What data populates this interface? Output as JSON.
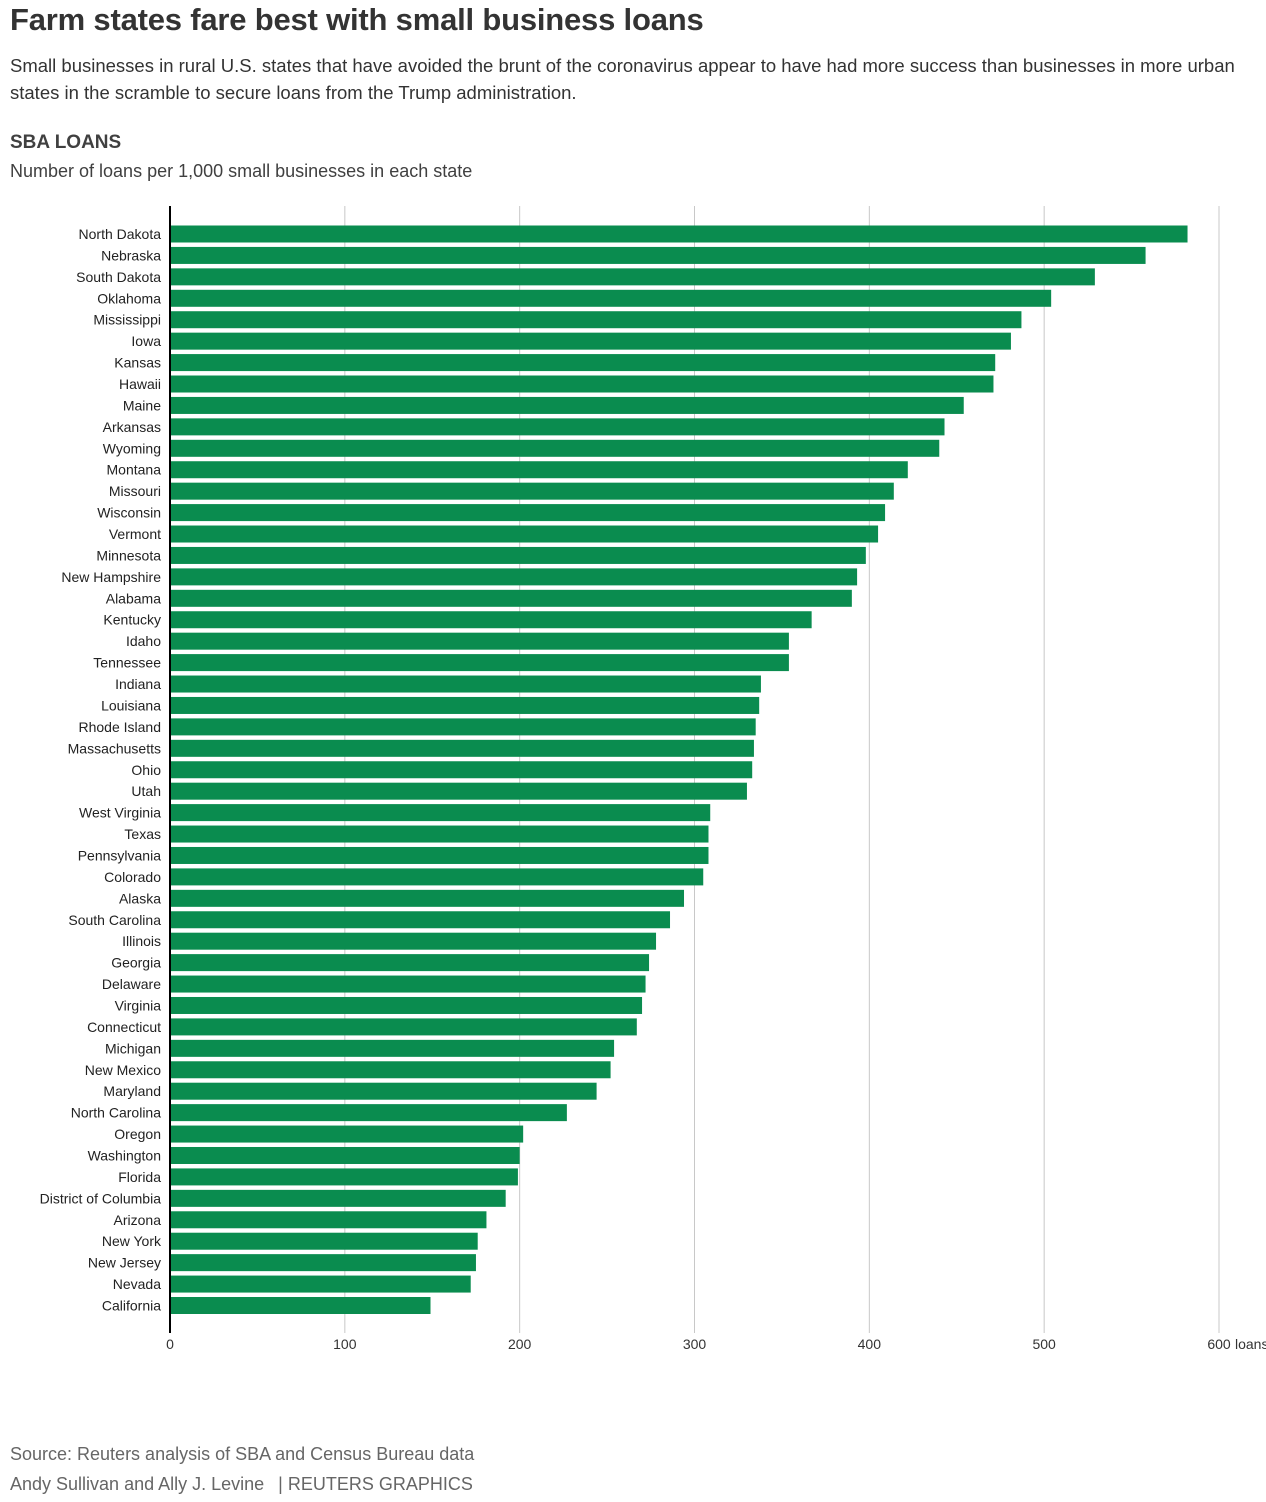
{
  "header": {
    "title": "Farm states fare best with small business loans",
    "subtitle": "Small businesses in rural U.S. states that have avoided the brunt of the coronavirus appear to have had more success than businesses in more urban states in the scramble to secure loans from the Trump administration."
  },
  "section": {
    "title": "SBA LOANS",
    "subtitle": "Number of loans per 1,000 small businesses in each state"
  },
  "footer": {
    "source": "Source: Reuters analysis of SBA and Census Bureau data",
    "authors": "Andy Sullivan and Ally J. Levine",
    "credit": "| REUTERS GRAPHICS"
  },
  "colors": {
    "bar": "#0a8c4f",
    "grid": "#c8c8c8",
    "axis": "#000000",
    "text": "#333333"
  },
  "chart_data": {
    "type": "bar",
    "orientation": "horizontal",
    "title": "SBA LOANS",
    "subtitle": "Number of loans per 1,000 small businesses in each state",
    "xlim": [
      0,
      600
    ],
    "x_ticks": [
      0,
      100,
      200,
      300,
      400,
      500,
      600
    ],
    "x_unit": "loans",
    "grid": true,
    "categories": [
      "North Dakota",
      "Nebraska",
      "South Dakota",
      "Oklahoma",
      "Mississippi",
      "Iowa",
      "Kansas",
      "Hawaii",
      "Maine",
      "Arkansas",
      "Wyoming",
      "Montana",
      "Missouri",
      "Wisconsin",
      "Vermont",
      "Minnesota",
      "New Hampshire",
      "Alabama",
      "Kentucky",
      "Idaho",
      "Tennessee",
      "Indiana",
      "Louisiana",
      "Rhode Island",
      "Massachusetts",
      "Ohio",
      "Utah",
      "West Virginia",
      "Texas",
      "Pennsylvania",
      "Colorado",
      "Alaska",
      "South Carolina",
      "Illinois",
      "Georgia",
      "Delaware",
      "Virginia",
      "Connecticut",
      "Michigan",
      "New Mexico",
      "Maryland",
      "North Carolina",
      "Oregon",
      "Washington",
      "Florida",
      "District of Columbia",
      "Arizona",
      "New York",
      "New Jersey",
      "Nevada",
      "California"
    ],
    "values": [
      582,
      558,
      529,
      504,
      487,
      481,
      472,
      471,
      454,
      443,
      440,
      422,
      414,
      409,
      405,
      398,
      393,
      390,
      367,
      354,
      354,
      338,
      337,
      335,
      334,
      333,
      330,
      309,
      308,
      308,
      305,
      294,
      286,
      278,
      274,
      272,
      270,
      267,
      254,
      252,
      244,
      227,
      202,
      200,
      199,
      192,
      181,
      176,
      175,
      172,
      149
    ]
  }
}
